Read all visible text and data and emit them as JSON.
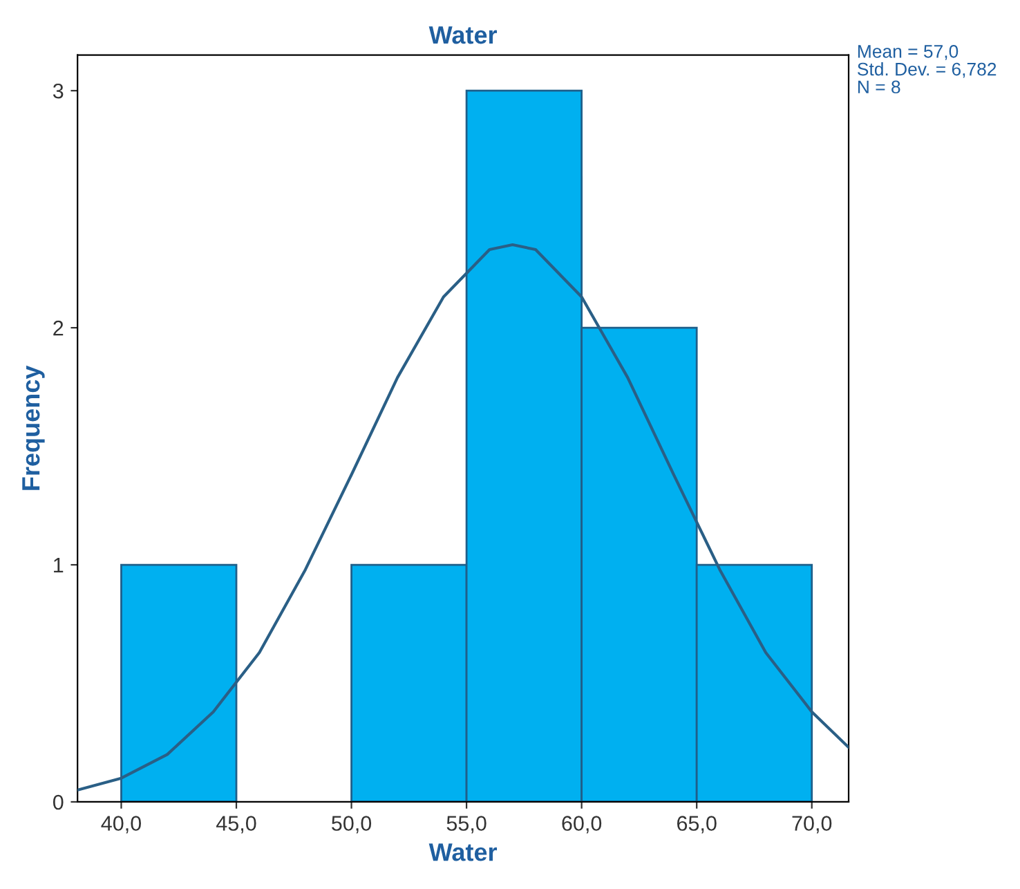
{
  "chart_data": {
    "type": "histogram",
    "title": "Water",
    "xlabel": "Water",
    "ylabel": "Frequency",
    "series": [
      {
        "bins": [
          40,
          45,
          50,
          55,
          60,
          65,
          70
        ],
        "values": [
          1,
          0,
          1,
          3,
          2,
          1
        ],
        "color": "#00b0f0"
      },
      {
        "type": "line",
        "color": "#2a5f86",
        "x": [
          38.1,
          40,
          42,
          44,
          46,
          48,
          50,
          52,
          54,
          56,
          57,
          58,
          60,
          62,
          64,
          66,
          68,
          70,
          71.6
        ],
        "values": [
          0.05,
          0.1,
          0.2,
          0.38,
          0.63,
          0.98,
          1.38,
          1.79,
          2.13,
          2.33,
          2.35,
          2.33,
          2.13,
          1.79,
          1.38,
          0.98,
          0.63,
          0.38,
          0.23
        ]
      }
    ],
    "xlim": [
      38.1,
      71.6
    ],
    "ylim": [
      0,
      3.15
    ],
    "xticks": [
      {
        "value": 40,
        "label": "40,0"
      },
      {
        "value": 45,
        "label": "45,0"
      },
      {
        "value": 50,
        "label": "50,0"
      },
      {
        "value": 55,
        "label": "55,0"
      },
      {
        "value": 60,
        "label": "60,0"
      },
      {
        "value": 65,
        "label": "65,0"
      },
      {
        "value": 70,
        "label": "70,0"
      }
    ],
    "yticks": [
      0,
      1,
      2,
      3
    ],
    "grid": false,
    "legend": false,
    "annotations": [
      "Mean = 57,0",
      "Std. Dev. = 6,782",
      "N = 8"
    ]
  }
}
